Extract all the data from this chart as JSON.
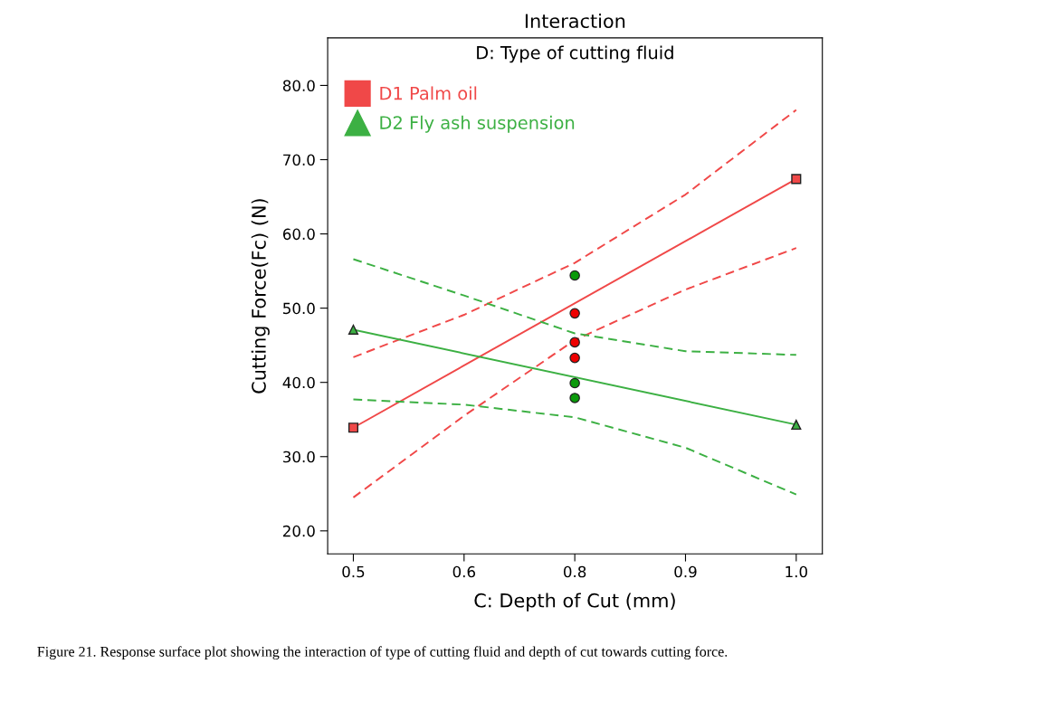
{
  "chart_data": {
    "type": "line",
    "title": "Interaction",
    "subtitle": "D: Type of cutting fluid",
    "xlabel": "C: Depth of Cut (mm)",
    "ylabel": "Cutting Force(Fc) (N)",
    "annotations": [
      "Figure 21. Response surface plot showing the interaction of type of cutting fluid and depth of cut towards cutting force."
    ],
    "xlim": [
      0.471,
      1.0295
    ],
    "ylim": [
      16.9,
      86.4
    ],
    "xticks": [
      0.5,
      {
        "value": 0.625,
        "label": "0.6"
      },
      {
        "value": 0.75,
        "label": "0.8"
      },
      {
        "value": 0.875,
        "label": "0.9"
      },
      {
        "value": 1.0,
        "label": "1.0"
      }
    ],
    "yticks": [
      {
        "value": 20,
        "label": "20.0"
      },
      {
        "value": 30,
        "label": "30.0"
      },
      {
        "value": 40,
        "label": "40.0"
      },
      {
        "value": 50,
        "label": "50.0"
      },
      {
        "value": 60,
        "label": "60.0"
      },
      {
        "value": 70,
        "label": "70.0"
      },
      {
        "value": 80,
        "label": "80.0"
      }
    ],
    "grid": false,
    "legend": "top left",
    "series": [
      {
        "name": "D1 Palm oil",
        "color": "#f04848",
        "marker": "square",
        "line_style": "solid",
        "x": [
          0.5,
          1.0
        ],
        "values": [
          33.9,
          67.4
        ]
      },
      {
        "color": "#f04848",
        "marker": "none",
        "line_style": "dashed",
        "x": [
          0.5,
          0.625,
          0.75,
          0.875,
          1.0
        ],
        "values": [
          43.4,
          49.1,
          56.1,
          65.3,
          76.7
        ]
      },
      {
        "color": "#f04848",
        "marker": "none",
        "line_style": "dashed",
        "x": [
          0.5,
          0.625,
          0.75,
          0.875,
          1.0
        ],
        "values": [
          24.5,
          35.5,
          45.7,
          52.5,
          58.1
        ]
      },
      {
        "type": "scatter",
        "color": "#ee0000",
        "marker": "circle",
        "x": [
          0.75,
          0.75,
          0.75
        ],
        "values": [
          49.3,
          45.4,
          43.3
        ]
      },
      {
        "name": "D2 Fly ash suspension",
        "color": "#3cb043",
        "marker": "triangle",
        "line_style": "solid",
        "x": [
          0.5,
          1.0
        ],
        "values": [
          47.1,
          34.3
        ]
      },
      {
        "color": "#3cb043",
        "marker": "none",
        "line_style": "dashed",
        "x": [
          0.5,
          0.625,
          0.75,
          0.875,
          1.0
        ],
        "values": [
          56.6,
          51.7,
          46.6,
          44.2,
          43.7
        ]
      },
      {
        "color": "#3cb043",
        "marker": "none",
        "line_style": "dashed",
        "x": [
          0.5,
          0.625,
          0.75,
          0.875,
          1.0
        ],
        "values": [
          37.7,
          37.0,
          35.3,
          31.2,
          24.9
        ]
      },
      {
        "type": "scatter",
        "color": "#0a9a0a",
        "marker": "circle",
        "x": [
          0.75,
          0.75,
          0.75
        ],
        "values": [
          54.4,
          39.9,
          37.9
        ]
      }
    ]
  }
}
